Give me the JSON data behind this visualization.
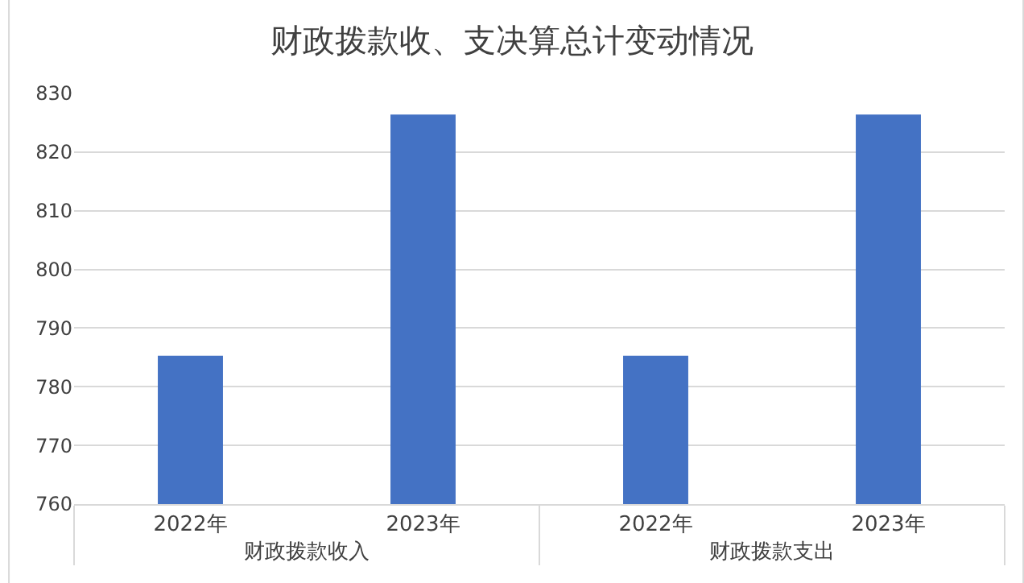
{
  "chart_data": {
    "type": "bar",
    "title": "财政拨款收、支决算总计变动情况",
    "categories": [
      "2022年",
      "2023年",
      "2022年",
      "2023年"
    ],
    "annotations": [
      "财政拨款收入",
      "财政拨款支出"
    ],
    "values": [
      785.3,
      826.4,
      785.3,
      826.4
    ],
    "color": "#4472c4",
    "ylim": [
      760,
      830
    ],
    "yticks": [
      760,
      770,
      780,
      790,
      800,
      810,
      820,
      830
    ],
    "grid": "y",
    "legend": false
  }
}
